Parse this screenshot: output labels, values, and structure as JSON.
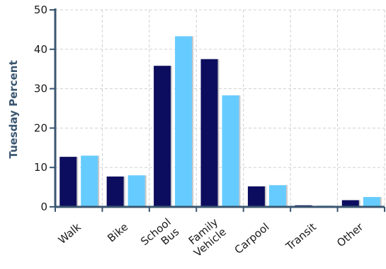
{
  "chart_data": {
    "type": "bar",
    "title": "",
    "xlabel": "",
    "ylabel": "Tuesday Percent",
    "ylim": [
      0,
      50
    ],
    "yticks": [
      0,
      10,
      20,
      30,
      40,
      50
    ],
    "grid": true,
    "legend": "none",
    "categories": [
      "Walk",
      "Bike",
      "School Bus",
      "Family Vehicle",
      "Carpool",
      "Transit",
      "Other"
    ],
    "category_lines": [
      [
        "Walk"
      ],
      [
        "Bike"
      ],
      [
        "School",
        "Bus"
      ],
      [
        "Family",
        "Vehicle"
      ],
      [
        "Carpool"
      ],
      [
        "Transit"
      ],
      [
        "Other"
      ]
    ],
    "series": [
      {
        "values": [
          12.7,
          7.7,
          35.8,
          37.5,
          5.2,
          0.4,
          1.7
        ]
      },
      {
        "values": [
          13.0,
          8.0,
          43.3,
          28.3,
          5.5,
          0.3,
          2.5
        ]
      }
    ],
    "colors": [
      "#0d0d5f",
      "#66ccff"
    ],
    "axis_color": "#3a5670",
    "grid_color": "#d0d0d0"
  }
}
